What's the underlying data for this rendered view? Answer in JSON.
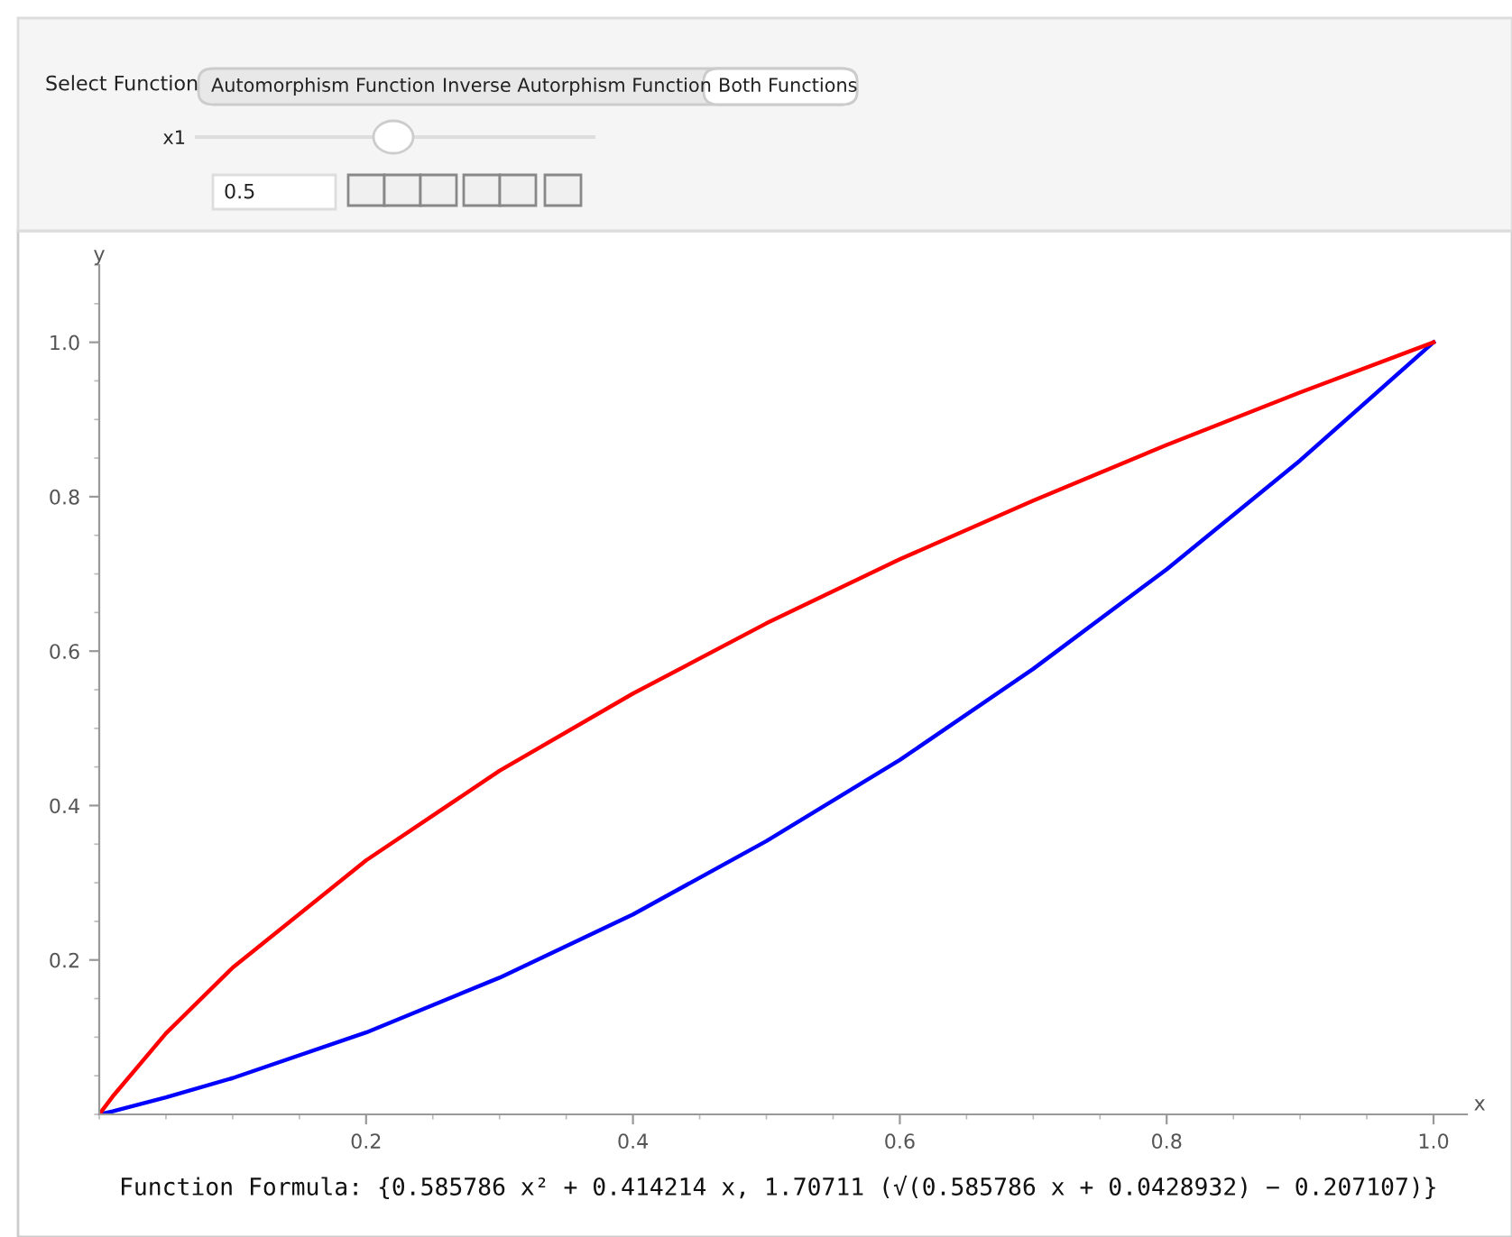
{
  "chart_data": {
    "type": "line",
    "xlabel": "x",
    "ylabel": "y",
    "x": [
      0,
      0.01,
      0.05,
      0.1,
      0.2,
      0.3,
      0.4,
      0.5,
      0.6,
      0.7,
      0.8,
      0.9,
      1.0
    ],
    "series": [
      {
        "color": "#0000ff",
        "values": [
          0,
          0.004,
          0.022,
          0.047,
          0.106,
          0.177,
          0.259,
          0.354,
          0.459,
          0.577,
          0.706,
          0.847,
          1.0
        ]
      },
      {
        "color": "#ff0000",
        "values": [
          0,
          0.023,
          0.105,
          0.19,
          0.329,
          0.445,
          0.545,
          0.636,
          0.719,
          0.795,
          0.867,
          0.935,
          1.0
        ]
      }
    ],
    "xlim": [
      0,
      1.025
    ],
    "ylim": [
      0,
      1.1
    ],
    "xticks": [
      0.2,
      0.4,
      0.6,
      0.8,
      {
        "value": 1,
        "label": "1.0"
      }
    ],
    "yticks": [
      0.2,
      0.4,
      0.6,
      0.8,
      {
        "value": 1,
        "label": "1.0"
      }
    ],
    "grid": false,
    "legend": false,
    "marker": "none",
    "line_style": "solid",
    "annotations": [
      "Select Function",
      "Automorphism Function",
      "Inverse Autorphism Function",
      "Both Functions",
      "x1",
      "0.5",
      "Function Formula: {0.585786 x² + 0.414214 x, 1.70711 (√(0.585786 x + 0.0428932) − 0.207107)}"
    ]
  }
}
